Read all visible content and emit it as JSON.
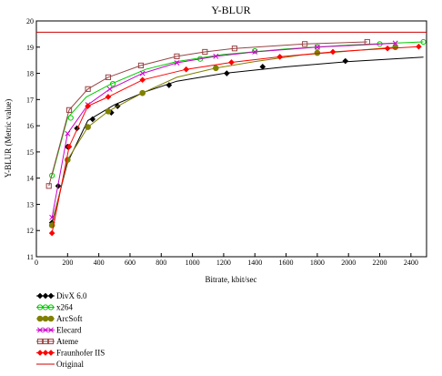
{
  "chart_data": {
    "type": "line",
    "title": "Y-BLUR",
    "xlabel": "Bitrate, kbit/sec",
    "ylabel": "Y-BLUR (Metric value)",
    "xlim": [
      0,
      2500
    ],
    "ylim": [
      11,
      20
    ],
    "x_ticks": [
      "0",
      "200",
      "400",
      "600",
      "800",
      "1000",
      "1200",
      "1400",
      "1600",
      "1800",
      "2000",
      "2200",
      "2400"
    ],
    "y_ticks": [
      "11",
      "12",
      "13",
      "14",
      "15",
      "16",
      "17",
      "18",
      "19",
      "20"
    ],
    "grid": false,
    "legend_position": "bottom-left",
    "series": [
      {
        "name": "DivX 6.0",
        "color": "#000000",
        "marker": "diamond",
        "x": [
          100,
          200,
          330,
          500,
          700,
          900,
          1200,
          1600,
          2000,
          2480
        ],
        "y": [
          12.3,
          14.6,
          16.2,
          16.8,
          17.3,
          17.7,
          18.0,
          18.25,
          18.45,
          18.62
        ],
        "markers_x": [
          100,
          140,
          200,
          260,
          360,
          480,
          520,
          680,
          850,
          1220,
          1450,
          1980
        ],
        "markers_y": [
          12.3,
          13.7,
          15.2,
          15.9,
          16.25,
          16.5,
          16.75,
          17.25,
          17.55,
          18.0,
          18.25,
          18.47
        ]
      },
      {
        "name": "x264",
        "color": "#00cc00",
        "marker": "circle",
        "x": [
          100,
          200,
          320,
          480,
          700,
          900,
          1200,
          1600,
          2000,
          2480
        ],
        "y": [
          14.1,
          16.3,
          17.1,
          17.6,
          18.15,
          18.45,
          18.72,
          18.93,
          19.08,
          19.2
        ],
        "markers_x": [
          100,
          220,
          490,
          1050,
          1400,
          1800,
          2200,
          2480
        ],
        "markers_y": [
          14.1,
          16.3,
          17.6,
          18.55,
          18.85,
          19.0,
          19.12,
          19.2
        ]
      },
      {
        "name": "ArcSoft",
        "color": "#808000",
        "marker": "filled-circle",
        "x": [
          100,
          200,
          330,
          460,
          680,
          900,
          1150,
          1400,
          1700,
          2000,
          2300
        ],
        "y": [
          12.2,
          14.7,
          15.95,
          16.55,
          17.25,
          17.85,
          18.2,
          18.45,
          18.7,
          18.85,
          19.0
        ],
        "markers_x": [
          100,
          200,
          330,
          460,
          680,
          1150,
          1800,
          2300
        ],
        "markers_y": [
          12.2,
          14.7,
          15.95,
          16.55,
          17.25,
          18.2,
          18.78,
          19.0
        ]
      },
      {
        "name": "Elecard",
        "color": "#cc00cc",
        "marker": "x",
        "x": [
          100,
          200,
          330,
          470,
          680,
          900,
          1150,
          1400,
          1800,
          2300
        ],
        "y": [
          12.5,
          15.7,
          16.8,
          17.4,
          18.0,
          18.4,
          18.65,
          18.82,
          19.0,
          19.15
        ],
        "markers_x": [
          100,
          200,
          330,
          470,
          680,
          900,
          1150,
          1400,
          1800,
          2300
        ],
        "markers_y": [
          12.5,
          15.7,
          16.8,
          17.4,
          18.0,
          18.4,
          18.65,
          18.82,
          19.0,
          19.15
        ]
      },
      {
        "name": "Ateme",
        "color": "#994444",
        "marker": "square",
        "x": [
          80,
          210,
          330,
          460,
          670,
          900,
          1080,
          1270,
          1720,
          2120
        ],
        "y": [
          13.7,
          16.6,
          17.4,
          17.85,
          18.3,
          18.65,
          18.82,
          18.95,
          19.12,
          19.2
        ],
        "markers_x": [
          80,
          210,
          330,
          460,
          670,
          900,
          1080,
          1270,
          1720,
          2120
        ],
        "markers_y": [
          13.7,
          16.6,
          17.4,
          17.85,
          18.3,
          18.65,
          18.82,
          18.95,
          19.12,
          19.2
        ]
      },
      {
        "name": "Fraunhofer IIS",
        "color": "#ff0000",
        "marker": "filled-diamond",
        "x": [
          100,
          210,
          330,
          460,
          680,
          960,
          1250,
          1560,
          1900,
          2250,
          2450
        ],
        "y": [
          11.9,
          15.2,
          16.75,
          17.1,
          17.75,
          18.15,
          18.42,
          18.63,
          18.82,
          18.95,
          19.02
        ],
        "markers_x": [
          100,
          210,
          330,
          460,
          680,
          960,
          1250,
          1560,
          1900,
          2250,
          2450
        ],
        "markers_y": [
          11.9,
          15.2,
          16.75,
          17.1,
          17.75,
          18.15,
          18.42,
          18.63,
          18.82,
          18.95,
          19.02
        ]
      },
      {
        "name": "Original",
        "color": "#cc0000",
        "marker": "none",
        "x": [
          0,
          2500
        ],
        "y": [
          19.57,
          19.57
        ],
        "markers_x": [],
        "markers_y": []
      }
    ]
  }
}
